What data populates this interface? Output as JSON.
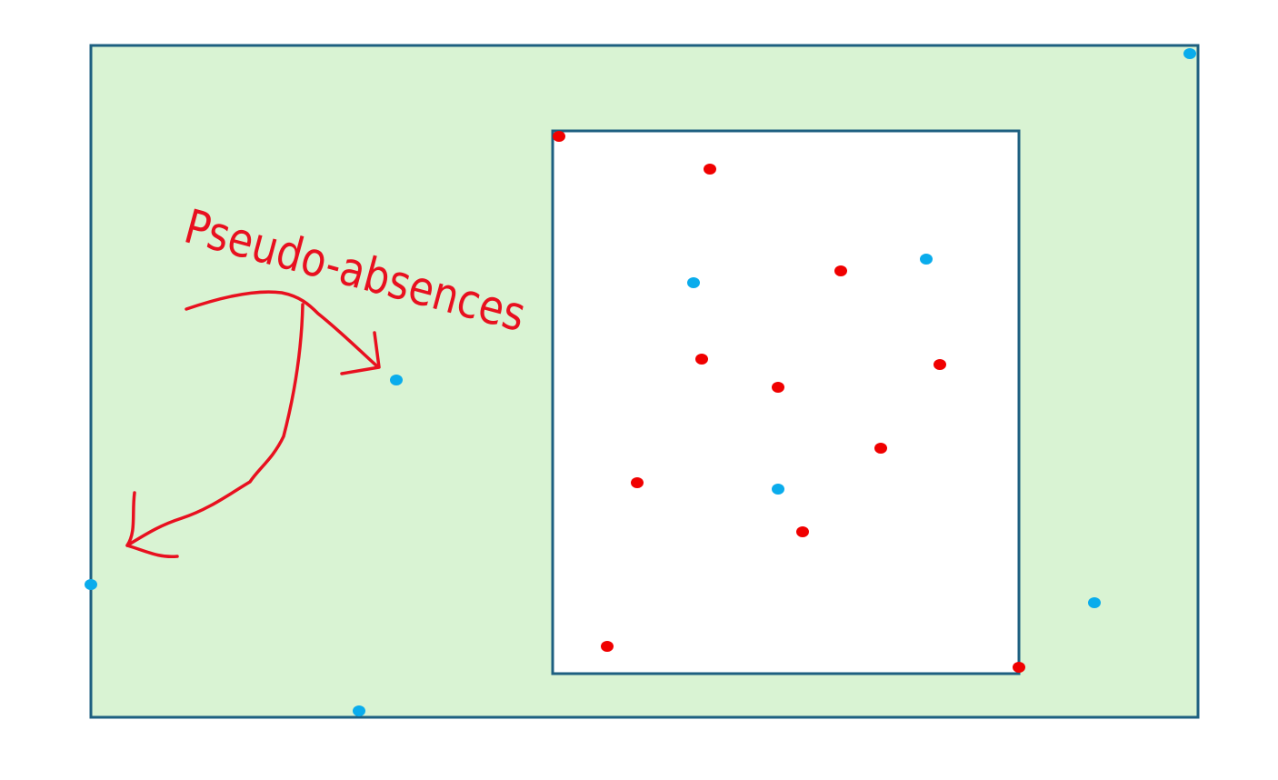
{
  "annotation": "Pseudo-absences"
}
